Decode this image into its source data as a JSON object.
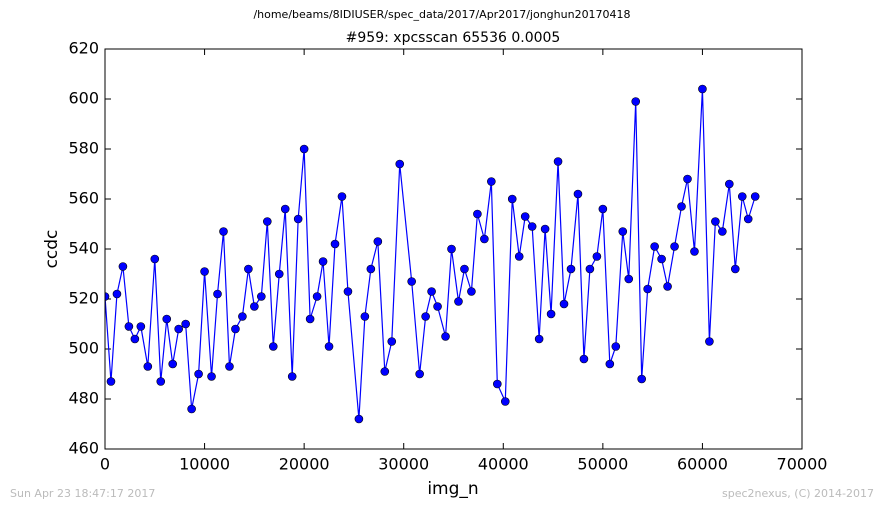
{
  "chart_data": {
    "type": "line",
    "title": "/home/beams/8IDIUSER/spec_data/2017/Apr2017/jonghun20170418",
    "subtitle": "#959: xpcsscan 65536 0.0005",
    "x_label": "img_n",
    "y_label": "ccdc",
    "footer_left": "Sun Apr 23 18:47:17 2017",
    "footer_right": "spec2nexus, (C) 2014-2017",
    "xlim": [
      0,
      70000
    ],
    "xticks": [
      0,
      10000,
      20000,
      30000,
      40000,
      50000,
      60000,
      70000
    ],
    "ylim": [
      460,
      620
    ],
    "yticks": [
      460,
      480,
      500,
      520,
      540,
      560,
      580,
      600,
      620
    ],
    "grid": false,
    "marker": "circle",
    "series": [
      {
        "name": "ccdc",
        "color": "#0000ff",
        "x": [
          0,
          600,
          1200,
          1800,
          2400,
          3000,
          3600,
          4300,
          5000,
          5600,
          6200,
          6800,
          7400,
          8100,
          8700,
          9400,
          10000,
          10700,
          11300,
          11900,
          12500,
          13100,
          13800,
          14400,
          15000,
          15700,
          16300,
          16900,
          17500,
          18100,
          18800,
          19400,
          20000,
          20600,
          21300,
          21900,
          22500,
          23100,
          23800,
          24400,
          25500,
          26100,
          26700,
          27400,
          28100,
          28800,
          29600,
          30800,
          31600,
          32200,
          32800,
          33400,
          34200,
          34800,
          35500,
          36100,
          36800,
          37400,
          38100,
          38800,
          39400,
          40200,
          40900,
          41600,
          42200,
          42900,
          43600,
          44200,
          44800,
          45500,
          46100,
          46800,
          47500,
          48100,
          48700,
          49400,
          50000,
          50700,
          51300,
          52000,
          52600,
          53300,
          53900,
          54500,
          55200,
          55900,
          56500,
          57200,
          57900,
          58500,
          59200,
          60000,
          60700,
          61300,
          62000,
          62700,
          63300,
          64000,
          64600,
          65300
        ],
        "values": [
          521,
          487,
          522,
          533,
          509,
          504,
          509,
          493,
          536,
          487,
          512,
          494,
          508,
          510,
          476,
          490,
          531,
          489,
          522,
          547,
          493,
          508,
          513,
          532,
          517,
          521,
          551,
          501,
          530,
          556,
          489,
          552,
          580,
          512,
          521,
          535,
          501,
          542,
          561,
          523,
          472,
          513,
          532,
          543,
          491,
          503,
          574,
          527,
          490,
          513,
          523,
          517,
          505,
          540,
          519,
          532,
          523,
          554,
          544,
          567,
          486,
          479,
          560,
          537,
          553,
          549,
          504,
          548,
          514,
          575,
          518,
          532,
          562,
          496,
          532,
          537,
          556,
          494,
          501,
          547,
          528,
          599,
          488,
          524,
          541,
          536,
          525,
          541,
          557,
          568,
          539,
          604,
          503,
          551,
          547,
          566,
          532,
          561,
          552,
          561
        ]
      }
    ]
  }
}
